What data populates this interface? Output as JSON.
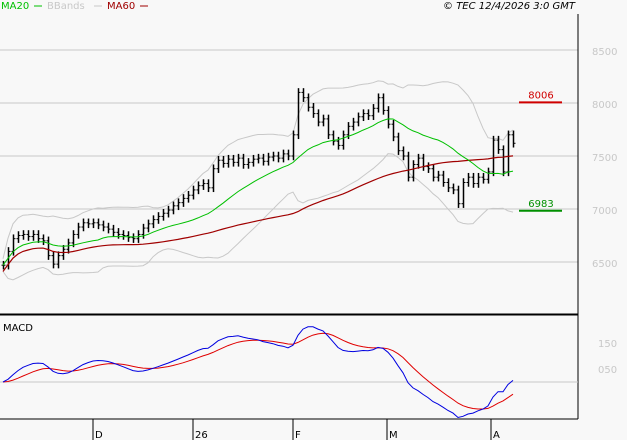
{
  "header": {
    "legend": [
      {
        "label": "MA20",
        "color": "#00c000"
      },
      {
        "label": "BBands",
        "color": "#c8c8c8"
      },
      {
        "label": "MA60",
        "color": "#a00000"
      }
    ],
    "copyright": "© TEC 12/4/2026 3:0 GMT"
  },
  "chart_data": [
    {
      "type": "ohlc",
      "panel": "price",
      "ylim": [
        6400,
        8750
      ],
      "yticks": [
        "8500",
        "8000",
        "7500",
        "7000",
        "6500"
      ],
      "ytick_values": [
        8500,
        8000,
        7500,
        7000,
        6500
      ],
      "xticks": [
        "D",
        "26",
        "F",
        "M",
        "A"
      ],
      "grid": true,
      "close": [
        6470,
        6600,
        6720,
        6750,
        6760,
        6740,
        6760,
        6720,
        6700,
        6560,
        6480,
        6560,
        6620,
        6680,
        6760,
        6830,
        6870,
        6860,
        6870,
        6850,
        6830,
        6810,
        6780,
        6760,
        6750,
        6730,
        6720,
        6760,
        6820,
        6860,
        6900,
        6930,
        6960,
        6990,
        7030,
        7060,
        7100,
        7130,
        7180,
        7220,
        7240,
        7200,
        7380,
        7460,
        7430,
        7470,
        7440,
        7480,
        7420,
        7440,
        7470,
        7480,
        7450,
        7490,
        7500,
        7480,
        7520,
        7500,
        7700,
        8100,
        8050,
        7960,
        7900,
        7820,
        7850,
        7700,
        7640,
        7600,
        7700,
        7780,
        7820,
        7870,
        7900,
        7880,
        7950,
        8050,
        7930,
        7800,
        7680,
        7550,
        7500,
        7300,
        7420,
        7480,
        7400,
        7380,
        7300,
        7320,
        7250,
        7200,
        7180,
        7050,
        7250,
        7300,
        7240,
        7300,
        7280,
        7350,
        7650,
        7560,
        7350,
        7700,
        7620
      ],
      "indicators": [
        "MA20",
        "BBands",
        "MA60"
      ],
      "levels": [
        {
          "label": "8006",
          "value": 8006,
          "color": "#d00000"
        },
        {
          "label": "6983",
          "value": 6983,
          "color": "#009000"
        }
      ]
    },
    {
      "type": "line",
      "panel": "macd",
      "title": "MACD",
      "yticks": [
        "150",
        "050"
      ],
      "ytick_values": [
        150,
        50
      ],
      "series": [
        {
          "color": "#0000e0"
        },
        {
          "color": "#e00000"
        }
      ]
    }
  ]
}
